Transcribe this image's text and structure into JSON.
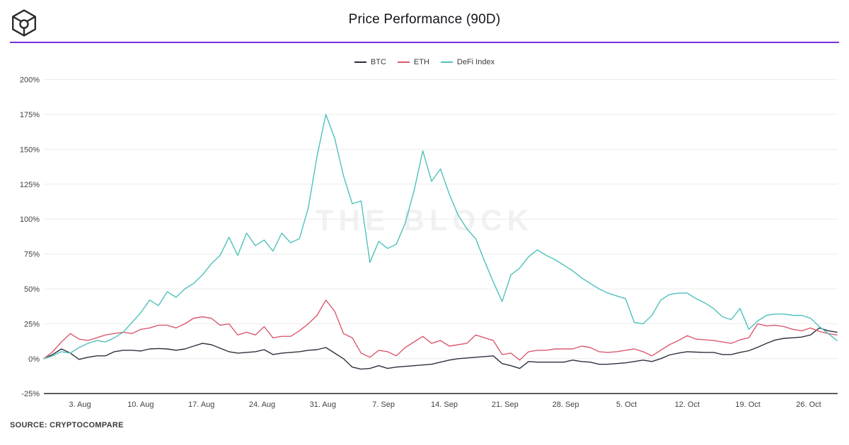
{
  "header": {
    "title": "Price Performance (90D)",
    "accent_color": "#7b2fe0"
  },
  "watermark": "THE BLOCK",
  "footer": {
    "source": "SOURCE: CRYPTOCOMPARE"
  },
  "chart_data": {
    "type": "line",
    "title": "Price Performance (90D)",
    "y_unit": "%",
    "ylim": [
      -25,
      200
    ],
    "grid": true,
    "legend_position": "top-center",
    "y_ticks": [
      200,
      175,
      150,
      125,
      100,
      75,
      50,
      25,
      0,
      -25
    ],
    "y_tick_labels": [
      "200%",
      "175%",
      "150%",
      "125%",
      "100%",
      "75%",
      "50%",
      "25%",
      "0%",
      "-25%"
    ],
    "x_tick_labels": [
      "3. Aug",
      "10. Aug",
      "17. Aug",
      "24. Aug",
      "31. Aug",
      "7. Sep",
      "14. Sep",
      "21. Sep",
      "28. Sep",
      "5. Oct",
      "12. Oct",
      "19. Oct",
      "26. Oct"
    ],
    "x_range_note": "daily values, 91 points, late July through late October",
    "series": [
      {
        "name": "BTC",
        "color": "#2b303c",
        "values": [
          0,
          3,
          7,
          4,
          -0.5,
          1,
          2,
          2,
          5,
          6,
          6,
          5.5,
          7,
          7.3,
          7,
          6,
          7,
          9,
          11,
          10,
          7.5,
          5,
          4,
          4.5,
          5,
          6.5,
          3,
          4,
          4.5,
          5,
          6,
          6.5,
          8,
          4,
          0,
          -6,
          -7.5,
          -7,
          -5,
          -7,
          -6,
          -5.5,
          -5,
          -4.5,
          -4,
          -2.5,
          -1,
          0,
          0.5,
          1,
          1.5,
          2,
          -3.5,
          -5,
          -7,
          -2,
          -2.5,
          -2.5,
          -2.5,
          -2.5,
          -1,
          -2,
          -2.5,
          -4,
          -4,
          -3.5,
          -3,
          -2,
          -1,
          -2,
          0,
          2.7,
          4,
          5,
          4.7,
          4.5,
          4.5,
          3,
          3,
          4.5,
          5.7,
          8.2,
          11,
          13.4,
          14.6,
          15,
          15.5,
          17,
          22,
          20,
          19
        ]
      },
      {
        "name": "ETH",
        "color": "#db5a6e",
        "values": [
          0,
          5,
          12,
          18,
          14,
          13,
          15,
          17,
          18,
          19,
          18,
          21,
          22,
          24,
          24,
          22,
          25,
          29,
          30,
          29,
          24,
          25,
          17,
          19,
          17,
          23,
          15,
          16,
          16,
          20,
          25,
          31,
          42,
          34,
          18,
          15,
          4,
          1,
          6,
          5,
          2,
          8,
          12,
          16,
          11,
          13,
          9,
          10,
          11,
          17,
          15,
          13,
          3,
          4,
          -1,
          5,
          6,
          6,
          7,
          7,
          7,
          9,
          8,
          5,
          4.5,
          5,
          6,
          7,
          5,
          2,
          6,
          10,
          13,
          16.5,
          14,
          13.5,
          13,
          12,
          11,
          13.5,
          15,
          25,
          23.5,
          24,
          23,
          21,
          20,
          22,
          19.5,
          18,
          17
        ]
      },
      {
        "name": "DeFi Index",
        "color": "#4fc1ba",
        "values": [
          0,
          2,
          5,
          4,
          8,
          11,
          13,
          12,
          15,
          19,
          26,
          33,
          42,
          38,
          48,
          44,
          50,
          54,
          60,
          68,
          74,
          87,
          74,
          90,
          81,
          85,
          77,
          90,
          83,
          86,
          108,
          145,
          175,
          158,
          131,
          111,
          113,
          69,
          84,
          79,
          82,
          97,
          120,
          149,
          127,
          136,
          118,
          103,
          93,
          86,
          70,
          55,
          41,
          60,
          65,
          73,
          78,
          74,
          71,
          67,
          63,
          58,
          54,
          50,
          47,
          45,
          43,
          26,
          25,
          31,
          42,
          46,
          47,
          47,
          43,
          40,
          36,
          30,
          28,
          36,
          21,
          27,
          31,
          32,
          32,
          31,
          31,
          29,
          23,
          18,
          13
        ]
      }
    ]
  }
}
